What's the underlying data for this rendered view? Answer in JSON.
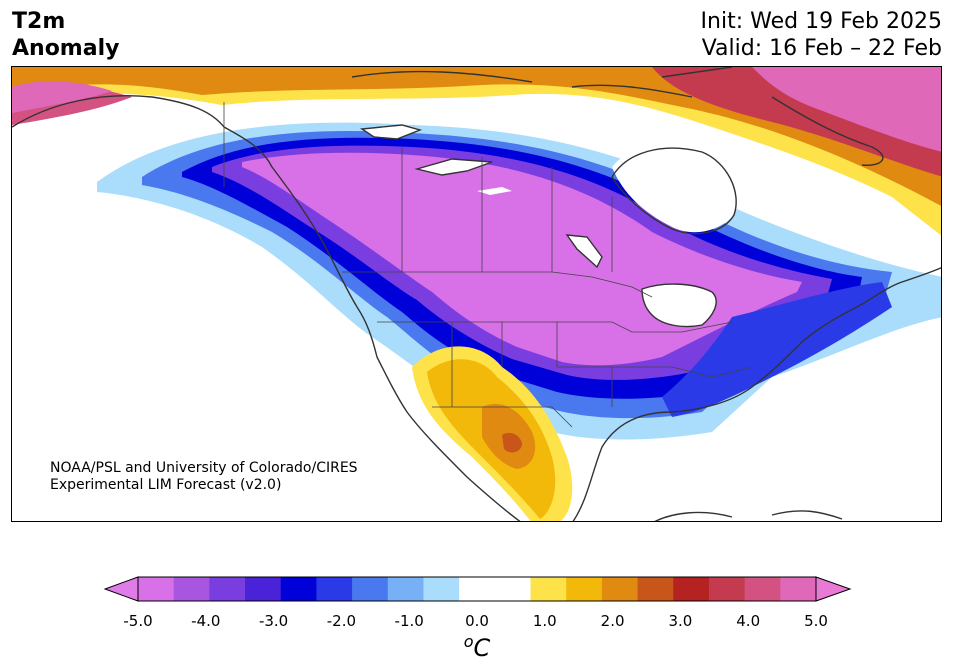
{
  "title": {
    "left_line1": "T2m",
    "left_line2": "Anomaly",
    "right_line1": "Init: Wed 19 Feb 2025",
    "right_line2": "Valid: 16 Feb – 22 Feb"
  },
  "credit": {
    "line1": "NOAA/PSL and University of Colorado/CIRES",
    "line2": "Experimental LIM Forecast (v2.0)"
  },
  "colorbar": {
    "tick_labels": [
      "-5.0",
      "-4.0",
      "-3.0",
      "-2.0",
      "-1.0",
      "0.0",
      "1.0",
      "2.0",
      "3.0",
      "4.0",
      "5.0"
    ],
    "unit_super": "o",
    "unit": "C",
    "colors": [
      "#d870e8",
      "#a855e0",
      "#7a3ee0",
      "#4a22d8",
      "#0000d8",
      "#2a3ae6",
      "#4a78ee",
      "#78b0f5",
      "#aadcfc",
      "#ffffff",
      "#ffffff",
      "#fde24a",
      "#f2b80a",
      "#e08a12",
      "#c8561a",
      "#b42222",
      "#c43a4e",
      "#d45282",
      "#e068b8"
    ],
    "under_color": "#e07ce8",
    "over_color": "#e87ad6"
  }
}
